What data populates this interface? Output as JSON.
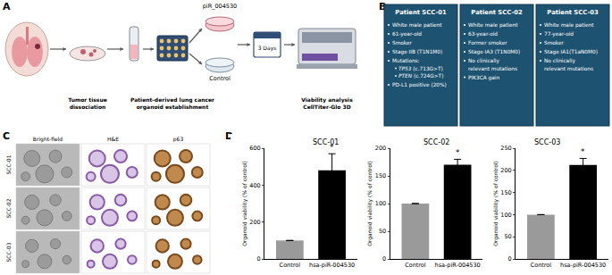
{
  "panel_labels": [
    "A",
    "B",
    "C",
    "D"
  ],
  "workflow": {
    "treatment": "piR_004530",
    "control": "Control",
    "duration": "3 Days",
    "steps": [
      {
        "lines": [
          "Tumor tissue",
          "dissociation"
        ]
      },
      {
        "lines": [
          "Patient-derived lung cancer",
          "organoid establishment"
        ]
      },
      {
        "lines": [
          "Viability analysis",
          "CellTiter-Glo 3D"
        ]
      }
    ]
  },
  "patients": [
    {
      "title": "Patient SCC-01",
      "items": [
        "White male patient",
        "61-year-old",
        "Smoker",
        "Stage IIB (T1N1M0)",
        {
          "text": "Mutations:",
          "sub": [
            {
              "gene": "TP53",
              "detail": " (c.713G>T)"
            },
            {
              "gene": "PTEN",
              "detail": " (c.724G>T)"
            }
          ]
        },
        "PD-L1 positive (20%)"
      ]
    },
    {
      "title": "Patient SCC-02",
      "items": [
        "White male patient",
        "63-year-old",
        "Former smoker",
        "Stage IA3 (T1N0M0)",
        "No clinically relevant mutations",
        "PIK3CA gain"
      ]
    },
    {
      "title": "Patient SCC-03",
      "items": [
        "White male patient",
        "77-year-old",
        "Smoker",
        "Stage IA1(T1aN0M0)",
        "No clinically relevant mutations"
      ]
    }
  ],
  "histology": {
    "columns": [
      "Bright-field",
      "H&E",
      "p63"
    ],
    "rows": [
      "SCC-01",
      "SCC-02",
      "SCC-03"
    ]
  },
  "chart_data": [
    {
      "type": "bar",
      "title": "SCC-01",
      "categories": [
        "Control",
        "hsa-piR-004530"
      ],
      "values": [
        100,
        480
      ],
      "errors": [
        null,
        90
      ],
      "colors": [
        "#9a9a9a",
        "#000000"
      ],
      "ylabel": "Organoid viability (% of control)",
      "ylim": [
        0,
        600
      ],
      "yticks": [
        0,
        200,
        400,
        600
      ],
      "grid": false,
      "annotations": [
        {
          "category": "hsa-piR-004530",
          "text": "*"
        }
      ]
    },
    {
      "type": "bar",
      "title": "SCC-02",
      "categories": [
        "Control",
        "hsa-piR-004530"
      ],
      "values": [
        100,
        170
      ],
      "errors": [
        null,
        10
      ],
      "colors": [
        "#9a9a9a",
        "#000000"
      ],
      "ylabel": "Organoid viability (% of control)",
      "ylim": [
        0,
        200
      ],
      "yticks": [
        0,
        50,
        100,
        150,
        200
      ],
      "grid": false,
      "annotations": [
        {
          "category": "hsa-piR-004530",
          "text": "*"
        }
      ]
    },
    {
      "type": "bar",
      "title": "SCC-03",
      "categories": [
        "Control",
        "hsa-piR-004530"
      ],
      "values": [
        100,
        212
      ],
      "errors": [
        null,
        15
      ],
      "colors": [
        "#9a9a9a",
        "#000000"
      ],
      "ylabel": "Organoid viability (% of control)",
      "ylim": [
        0,
        250
      ],
      "yticks": [
        0,
        50,
        100,
        150,
        200,
        250
      ],
      "grid": false,
      "annotations": [
        {
          "category": "hsa-piR-004530",
          "text": "*"
        }
      ]
    }
  ]
}
